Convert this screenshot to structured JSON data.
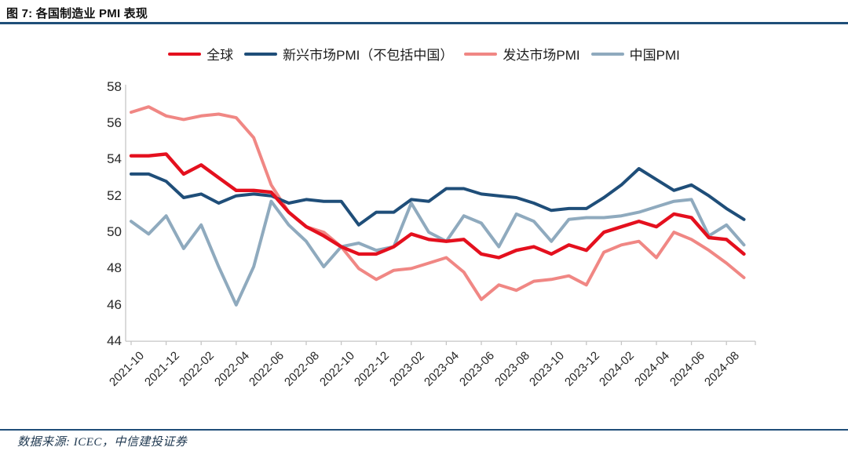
{
  "figure": {
    "title": "图 7: 各国制造业 PMI 表现",
    "source": "数据来源: ICEC，中信建投证券"
  },
  "colors": {
    "title_rule": "#1F4E79",
    "footer_rule": "#1F4E79",
    "axis_line": "#c6c6c6",
    "tick_text": "#262626"
  },
  "chart_data": {
    "type": "line",
    "title": "图 7: 各国制造业 PMI 表现",
    "x": [
      "2021-10",
      "2021-11",
      "2021-12",
      "2022-01",
      "2022-02",
      "2022-03",
      "2022-04",
      "2022-05",
      "2022-06",
      "2022-07",
      "2022-08",
      "2022-09",
      "2022-10",
      "2022-11",
      "2022-12",
      "2023-01",
      "2023-02",
      "2023-03",
      "2023-04",
      "2023-05",
      "2023-06",
      "2023-07",
      "2023-08",
      "2023-09",
      "2023-10",
      "2023-11",
      "2023-12",
      "2024-01",
      "2024-02",
      "2024-03",
      "2024-04",
      "2024-05",
      "2024-06",
      "2024-07",
      "2024-08",
      "2024-09"
    ],
    "x_tick_labels": [
      "2021-10",
      "2021-12",
      "2022-02",
      "2022-04",
      "2022-06",
      "2022-08",
      "2022-10",
      "2022-12",
      "2023-02",
      "2023-04",
      "2023-06",
      "2023-08",
      "2023-10",
      "2023-12",
      "2024-02",
      "2024-04",
      "2024-06",
      "2024-08"
    ],
    "y_ticks": [
      58,
      56,
      54,
      52,
      50,
      48,
      46,
      44
    ],
    "ylim": [
      44,
      58
    ],
    "grid": false,
    "legend_position": "top",
    "series": [
      {
        "name": "全球",
        "color": "#E4101E",
        "values": [
          54.2,
          54.2,
          54.3,
          53.2,
          53.7,
          53.0,
          52.3,
          52.3,
          52.2,
          51.1,
          50.3,
          49.8,
          49.2,
          48.8,
          48.8,
          49.2,
          49.9,
          49.6,
          49.5,
          49.6,
          48.8,
          48.6,
          49.0,
          49.2,
          48.8,
          49.3,
          49.0,
          50.0,
          50.3,
          50.6,
          50.3,
          51.0,
          50.8,
          49.7,
          49.6,
          48.8
        ]
      },
      {
        "name": "新兴市场PMI（不包括中国）",
        "color": "#1F4E79",
        "values": [
          53.2,
          53.2,
          52.8,
          51.9,
          52.1,
          51.6,
          52.0,
          52.1,
          52.0,
          51.6,
          51.8,
          51.7,
          51.7,
          50.4,
          51.1,
          51.1,
          51.8,
          51.7,
          52.4,
          52.4,
          52.1,
          52.0,
          51.9,
          51.6,
          51.2,
          51.3,
          51.3,
          51.9,
          52.6,
          53.5,
          52.9,
          52.3,
          52.6,
          52.0,
          51.3,
          50.7
        ]
      },
      {
        "name": "发达市场PMI",
        "color": "#F08784",
        "values": [
          56.6,
          56.9,
          56.4,
          56.2,
          56.4,
          56.5,
          56.3,
          55.2,
          52.6,
          51.1,
          50.3,
          50.0,
          49.2,
          48.0,
          47.4,
          47.9,
          48.0,
          48.3,
          48.6,
          47.8,
          46.3,
          47.1,
          46.8,
          47.3,
          47.4,
          47.6,
          47.1,
          48.9,
          49.3,
          49.5,
          48.6,
          50.0,
          49.6,
          49.0,
          48.3,
          47.5
        ]
      },
      {
        "name": "中国PMI",
        "color": "#8FAABE",
        "values": [
          50.6,
          49.9,
          50.9,
          49.1,
          50.4,
          48.1,
          46.0,
          48.1,
          51.7,
          50.4,
          49.5,
          48.1,
          49.2,
          49.4,
          49.0,
          49.2,
          51.6,
          50.0,
          49.5,
          50.9,
          50.5,
          49.2,
          51.0,
          50.6,
          49.5,
          50.7,
          50.8,
          50.8,
          50.9,
          51.1,
          51.4,
          51.7,
          51.8,
          49.8,
          50.4,
          49.3
        ]
      }
    ]
  }
}
